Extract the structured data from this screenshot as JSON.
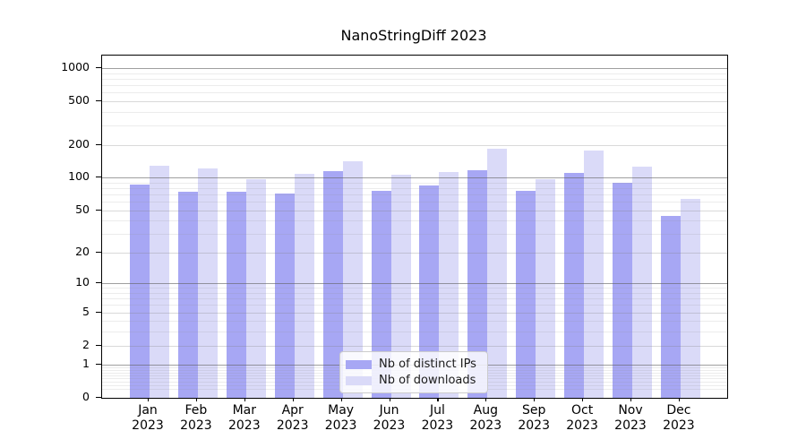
{
  "title": "NanoStringDiff 2023",
  "legend": {
    "entries": [
      {
        "label": "Nb of distinct IPs"
      },
      {
        "label": "Nb of downloads"
      }
    ]
  },
  "chart_data": {
    "type": "bar",
    "title": "NanoStringDiff 2023",
    "xlabel": "",
    "ylabel": "",
    "scale": "log1p",
    "grid": true,
    "legend_position": "lower center",
    "categories": [
      "Jan 2023",
      "Feb 2023",
      "Mar 2023",
      "Apr 2023",
      "May 2023",
      "Jun 2023",
      "Jul 2023",
      "Aug 2023",
      "Sep 2023",
      "Oct 2023",
      "Nov 2023",
      "Dec 2023"
    ],
    "series": [
      {
        "name": "Nb of distinct IPs",
        "color": "#a7a7f4",
        "values": [
          86,
          74,
          74,
          71,
          115,
          76,
          85,
          117,
          75,
          111,
          89,
          44
        ]
      },
      {
        "name": "Nb of downloads",
        "color": "#dadaf8",
        "values": [
          128,
          121,
          97,
          108,
          141,
          106,
          113,
          183,
          97,
          178,
          126,
          64
        ]
      }
    ],
    "yticks": [
      0,
      1,
      2,
      5,
      10,
      20,
      50,
      100,
      200,
      500,
      1000
    ],
    "ylim": [
      0,
      1300
    ]
  }
}
